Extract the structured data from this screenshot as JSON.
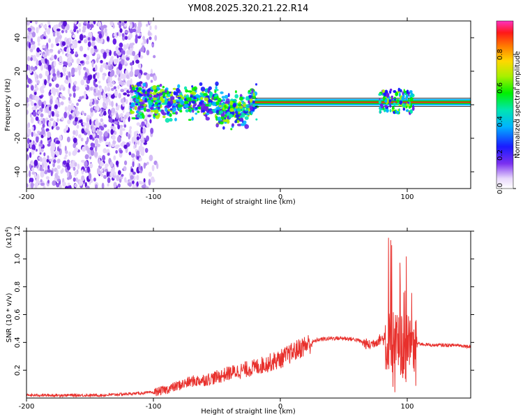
{
  "title": "YM08.2025.320.21.22.R14",
  "chart_data": [
    {
      "type": "heatmap",
      "xlabel": "Height of straight line (km)",
      "ylabel": "Frequency (Hz)",
      "xlim": [
        -200,
        150
      ],
      "ylim": [
        -50,
        50
      ],
      "xticks": [
        -200,
        -100,
        0,
        100
      ],
      "yticks": [
        -40,
        -20,
        0,
        20,
        40
      ],
      "xtick_labels": [
        "-200",
        "-100",
        "0",
        "100"
      ],
      "ytick_labels": [
        "-40",
        "-20",
        "0",
        "20",
        "40"
      ],
      "colorbar": {
        "label": "Normalized spectral amplitude",
        "range": [
          0,
          1
        ],
        "ticks": [
          0.0,
          0.2,
          0.4,
          0.6,
          0.8
        ],
        "tick_labels": [
          "0.0",
          "0.2",
          "0.4",
          "0.6",
          "0.8"
        ]
      },
      "features": [
        {
          "x_range": [
            -200,
            -95
          ],
          "freq_range": [
            -50,
            50
          ],
          "amplitude": "low",
          "description": "broadband noise"
        },
        {
          "x_range": [
            -115,
            -20
          ],
          "freq_range": [
            -12,
            12
          ],
          "amplitude": "medium"
        },
        {
          "x_range": [
            -20,
            150
          ],
          "freq_center": 1.5,
          "amplitude": "high"
        }
      ]
    },
    {
      "type": "line",
      "xlabel": "Height of straight line (km)",
      "ylabel": "SNR (10 * v/v)",
      "y_multiplier": "(x10^4)",
      "y_multiplier_base": "(x10",
      "y_multiplier_exp": "4",
      "xlim": [
        -200,
        150
      ],
      "ylim": [
        0,
        1.2
      ],
      "xticks": [
        -200,
        -100,
        0,
        100
      ],
      "yticks": [
        0.2,
        0.4,
        0.6,
        0.8,
        1.0,
        1.2
      ],
      "xtick_labels": [
        "-200",
        "-100",
        "0",
        "100"
      ],
      "ytick_labels": [
        "0.2",
        "0.4",
        "0.6",
        "0.8",
        "1.0",
        "1.2"
      ],
      "series": [
        {
          "name": "SNR",
          "color": "#e8302c",
          "x": [
            -200,
            -180,
            -160,
            -140,
            -120,
            -100,
            -90,
            -80,
            -70,
            -60,
            -50,
            -40,
            -30,
            -20,
            -10,
            0,
            10,
            20,
            30,
            40,
            50,
            60,
            70,
            80,
            85,
            90,
            95,
            100,
            105,
            110,
            120,
            130,
            140,
            150
          ],
          "values": [
            0.02,
            0.02,
            0.02,
            0.02,
            0.03,
            0.04,
            0.06,
            0.09,
            0.12,
            0.13,
            0.15,
            0.18,
            0.2,
            0.22,
            0.25,
            0.28,
            0.33,
            0.38,
            0.42,
            0.43,
            0.43,
            0.42,
            0.38,
            0.43,
            0.38,
            0.4,
            0.38,
            0.35,
            0.4,
            0.39,
            0.38,
            0.38,
            0.38,
            0.37
          ]
        }
      ]
    }
  ]
}
